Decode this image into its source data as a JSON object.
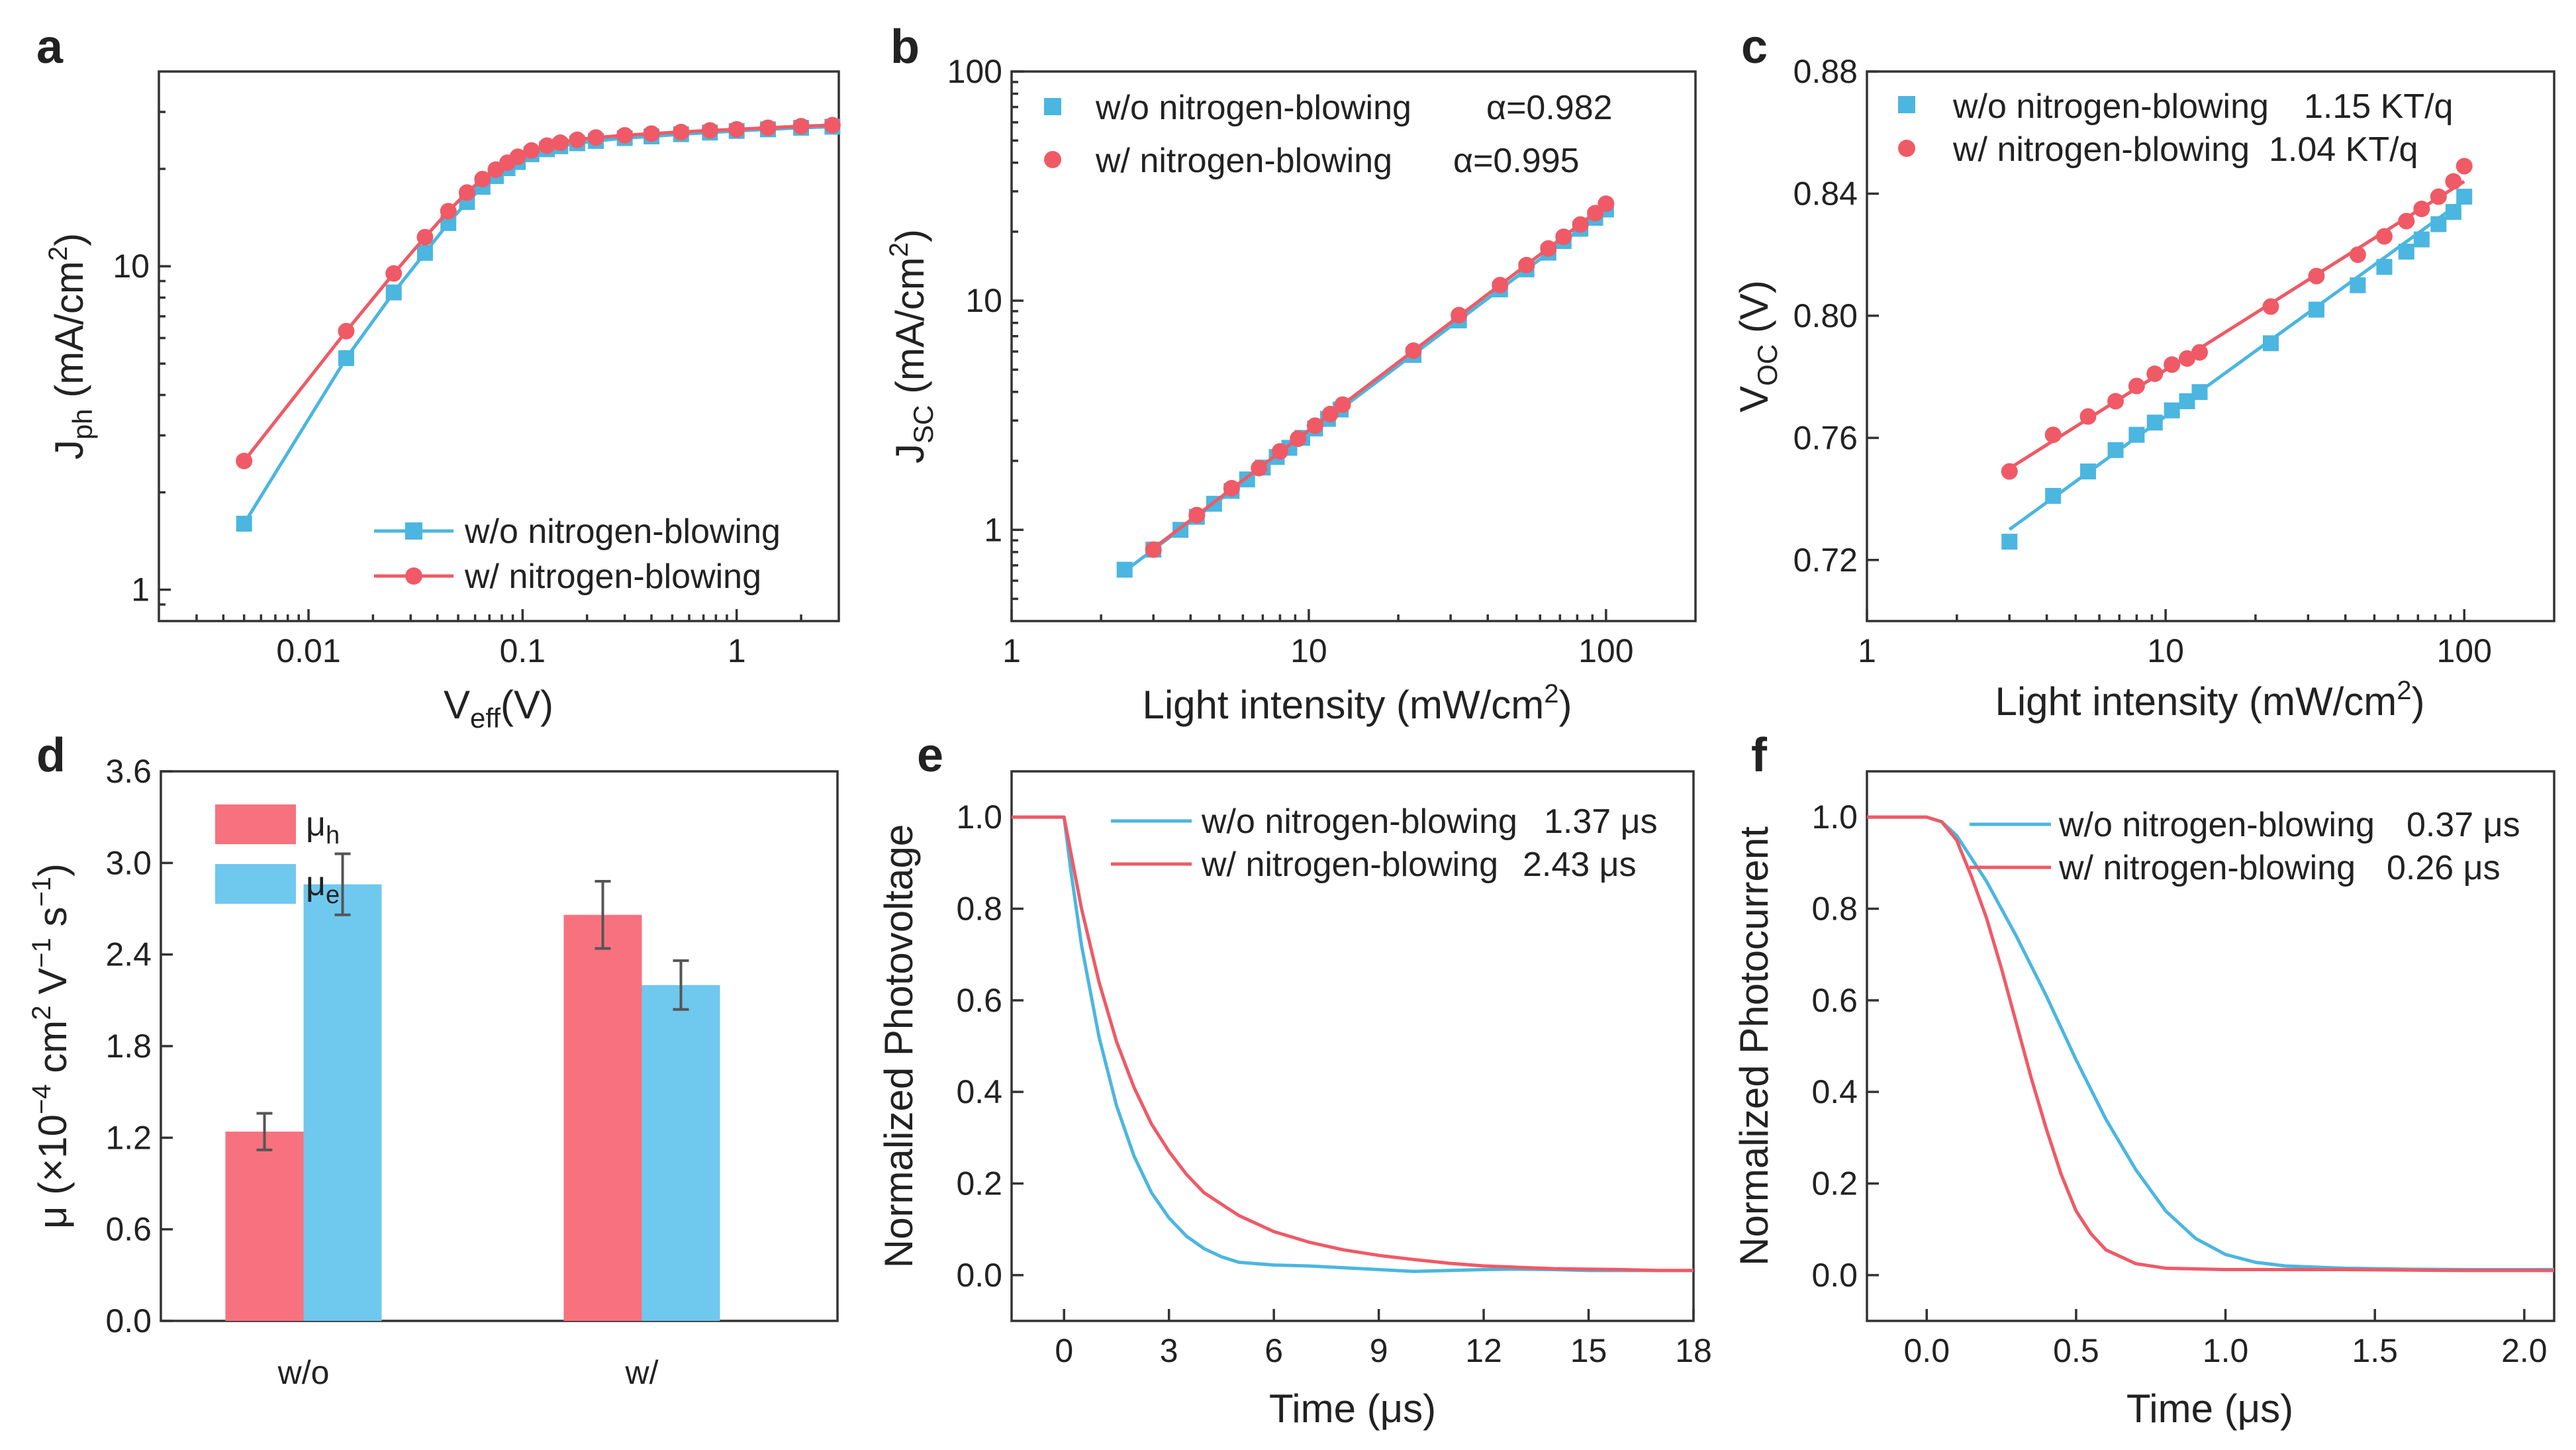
{
  "colors": {
    "blue": "#4BB6E0",
    "red": "#EF5A66",
    "bar_red": "#F7727E",
    "bar_blue": "#6FC8EE",
    "axis": "#333333",
    "err": "#555555"
  },
  "chart_data": [
    {
      "panel": "a",
      "type": "line",
      "xscale": "log",
      "yscale": "log",
      "xlabel_main": "V",
      "xlabel_sub": "eff",
      "xlabel_unit": "(V)",
      "ylabel_main": "J",
      "ylabel_sub": "ph",
      "ylabel_unit": " (mA/cm",
      "ylabel_sup": "2",
      "ylabel_close": ")",
      "xlim": [
        0.002,
        3
      ],
      "ylim": [
        0.8,
        40
      ],
      "xticks": [
        {
          "v": 0.01,
          "label": "0.01"
        },
        {
          "v": 0.1,
          "label": "0.1"
        },
        {
          "v": 1,
          "label": "1"
        }
      ],
      "yticks": [
        {
          "v": 1,
          "label": "1"
        },
        {
          "v": 10,
          "label": "10"
        }
      ],
      "legend_position": "bottom-right",
      "series": [
        {
          "name": "w/o  nitrogen-blowing",
          "color": "blue",
          "marker": "square",
          "x": [
            0.005,
            0.015,
            0.025,
            0.035,
            0.045,
            0.055,
            0.065,
            0.075,
            0.085,
            0.095,
            0.11,
            0.13,
            0.15,
            0.18,
            0.22,
            0.3,
            0.4,
            0.55,
            0.75,
            1.0,
            1.4,
            2.0,
            2.8
          ],
          "y": [
            1.6,
            5.2,
            8.3,
            11.0,
            13.6,
            15.8,
            17.6,
            19.0,
            20.1,
            21.0,
            22.2,
            23.0,
            23.5,
            24.0,
            24.4,
            24.9,
            25.2,
            25.6,
            25.9,
            26.2,
            26.5,
            26.8,
            27.0
          ]
        },
        {
          "name": "w/ nitrogen-blowing",
          "color": "red",
          "marker": "circle",
          "x": [
            0.005,
            0.015,
            0.025,
            0.035,
            0.045,
            0.055,
            0.065,
            0.075,
            0.085,
            0.095,
            0.11,
            0.13,
            0.15,
            0.18,
            0.22,
            0.3,
            0.4,
            0.55,
            0.75,
            1.0,
            1.4,
            2.0,
            2.8
          ],
          "y": [
            2.5,
            6.3,
            9.5,
            12.3,
            14.8,
            16.9,
            18.6,
            19.9,
            20.9,
            21.8,
            22.8,
            23.6,
            24.1,
            24.6,
            25.0,
            25.4,
            25.7,
            26.0,
            26.3,
            26.5,
            26.8,
            27.1,
            27.3
          ]
        }
      ]
    },
    {
      "panel": "b",
      "type": "scatter",
      "xscale": "log",
      "yscale": "log",
      "xlabel": "Light intensity",
      "xlabel_unit": " (mW/cm",
      "xlabel_sup": "2",
      "xlabel_close": ")",
      "ylabel_main": "J",
      "ylabel_sub": "SC",
      "ylabel_unit": " (mA/cm",
      "ylabel_sup": "2",
      "ylabel_close": ")",
      "xlim": [
        1,
        200
      ],
      "ylim": [
        0.4,
        100
      ],
      "xticks": [
        {
          "v": 1,
          "label": "1"
        },
        {
          "v": 10,
          "label": "10"
        },
        {
          "v": 100,
          "label": "100"
        }
      ],
      "yticks": [
        {
          "v": 1,
          "label": "1"
        },
        {
          "v": 10,
          "label": "10"
        },
        {
          "v": 100,
          "label": "100"
        }
      ],
      "legend_position": "top-left",
      "series": [
        {
          "name": "w/o  nitrogen-blowing",
          "annotation": "α=0.982",
          "color": "blue",
          "marker": "square",
          "x": [
            2.4,
            3.0,
            3.7,
            4.2,
            4.8,
            5.5,
            6.2,
            7.0,
            7.8,
            8.6,
            9.5,
            10.5,
            11.6,
            12.8,
            22.5,
            32,
            44,
            54,
            64,
            72,
            82,
            92,
            100
          ],
          "y": [
            0.67,
            0.82,
            1.0,
            1.14,
            1.3,
            1.48,
            1.66,
            1.87,
            2.08,
            2.28,
            2.52,
            2.77,
            3.05,
            3.35,
            5.8,
            8.2,
            11.2,
            13.7,
            16.2,
            18.2,
            20.6,
            23.0,
            25.0
          ]
        },
        {
          "name": "w/ nitrogen-blowing",
          "annotation": "α=0.995",
          "color": "red",
          "marker": "circle",
          "x": [
            3.0,
            4.2,
            5.5,
            6.8,
            8.0,
            9.2,
            10.5,
            11.8,
            13.0,
            22.5,
            32,
            44,
            54,
            64,
            72,
            82,
            92,
            100
          ],
          "y": [
            0.82,
            1.16,
            1.52,
            1.86,
            2.2,
            2.5,
            2.85,
            3.2,
            3.52,
            6.05,
            8.65,
            11.7,
            14.3,
            16.9,
            19.0,
            21.5,
            24.1,
            26.5
          ]
        }
      ]
    },
    {
      "panel": "c",
      "type": "scatter",
      "xscale": "log",
      "yscale": "linear",
      "xlabel": "Light intensity",
      "xlabel_unit": " (mW/cm",
      "xlabel_sup": "2",
      "xlabel_close": ")",
      "ylabel_main": "V",
      "ylabel_sub": "OC",
      "ylabel_unit": " (V)",
      "xlim": [
        1,
        200
      ],
      "ylim": [
        0.7,
        0.88
      ],
      "xticks": [
        {
          "v": 1,
          "label": "1"
        },
        {
          "v": 10,
          "label": "10"
        },
        {
          "v": 100,
          "label": "100"
        }
      ],
      "yticks": [
        {
          "v": 0.72,
          "label": "0.72"
        },
        {
          "v": 0.76,
          "label": "0.76"
        },
        {
          "v": 0.8,
          "label": "0.80"
        },
        {
          "v": 0.84,
          "label": "0.84"
        },
        {
          "v": 0.88,
          "label": "0.88"
        }
      ],
      "legend_position": "top-left",
      "series": [
        {
          "name": "w/o nitrogen-blowing",
          "annotation": "1.15 KT/q",
          "color": "blue",
          "marker": "square",
          "x": [
            3,
            4.2,
            5.5,
            6.8,
            8,
            9.2,
            10.5,
            11.8,
            13,
            22.5,
            32,
            44,
            54,
            64,
            72,
            82,
            92,
            100
          ],
          "y": [
            0.726,
            0.741,
            0.749,
            0.756,
            0.761,
            0.765,
            0.769,
            0.772,
            0.775,
            0.791,
            0.802,
            0.81,
            0.816,
            0.821,
            0.825,
            0.83,
            0.834,
            0.839
          ],
          "fit": {
            "x": [
              3,
              100
            ],
            "y": [
              0.73,
              0.838
            ]
          }
        },
        {
          "name": "w/ nitrogen-blowing",
          "annotation": "1.04 KT/q",
          "color": "red",
          "marker": "circle",
          "x": [
            3,
            4.2,
            5.5,
            6.8,
            8,
            9.2,
            10.5,
            11.8,
            13,
            22.5,
            32,
            44,
            54,
            64,
            72,
            82,
            92,
            100
          ],
          "y": [
            0.749,
            0.761,
            0.767,
            0.772,
            0.777,
            0.781,
            0.784,
            0.786,
            0.788,
            0.803,
            0.813,
            0.82,
            0.826,
            0.831,
            0.835,
            0.839,
            0.844,
            0.849
          ],
          "fit": {
            "x": [
              3,
              100
            ],
            "y": [
              0.75,
              0.844
            ]
          }
        }
      ]
    },
    {
      "panel": "d",
      "type": "bar",
      "categories": [
        "w/o",
        "w/"
      ],
      "ylabel": "μ (×10",
      "ylabel_sup1": "−4",
      "ylabel_mid": " cm",
      "ylabel_sup2": "2",
      "ylabel_mid2": " V",
      "ylabel_sup3": "−1",
      "ylabel_mid3": " s",
      "ylabel_sup4": "−1",
      "ylabel_close": ")",
      "ylim": [
        0,
        3.6
      ],
      "yticks": [
        {
          "v": 0.0,
          "label": "0.0"
        },
        {
          "v": 0.6,
          "label": "0.6"
        },
        {
          "v": 1.2,
          "label": "1.2"
        },
        {
          "v": 1.8,
          "label": "1.8"
        },
        {
          "v": 2.4,
          "label": "2.4"
        },
        {
          "v": 3.0,
          "label": "3.0"
        },
        {
          "v": 3.6,
          "label": "3.6"
        }
      ],
      "legend_position": "top-left",
      "series": [
        {
          "name": "μ",
          "sub": "h",
          "color": "bar_red",
          "values": [
            1.24,
            2.66
          ],
          "errors": [
            0.12,
            0.22
          ]
        },
        {
          "name": "μ",
          "sub": "e",
          "color": "bar_blue",
          "values": [
            2.86,
            2.2
          ],
          "errors": [
            0.2,
            0.16
          ]
        }
      ]
    },
    {
      "panel": "e",
      "type": "line",
      "xlabel": "Time (μs)",
      "ylabel": "Normalized Photovoltage",
      "xlim": [
        -1.5,
        18
      ],
      "ylim": [
        -0.1,
        1.1
      ],
      "xticks": [
        {
          "v": 0,
          "label": "0"
        },
        {
          "v": 3,
          "label": "3"
        },
        {
          "v": 6,
          "label": "6"
        },
        {
          "v": 9,
          "label": "9"
        },
        {
          "v": 12,
          "label": "12"
        },
        {
          "v": 15,
          "label": "15"
        },
        {
          "v": 18,
          "label": "18"
        }
      ],
      "yticks": [
        {
          "v": 0.0,
          "label": "0.0"
        },
        {
          "v": 0.2,
          "label": "0.2"
        },
        {
          "v": 0.4,
          "label": "0.4"
        },
        {
          "v": 0.6,
          "label": "0.6"
        },
        {
          "v": 0.8,
          "label": "0.8"
        },
        {
          "v": 1.0,
          "label": "1.0"
        }
      ],
      "legend_position": "top-right",
      "series": [
        {
          "name": "w/o nitrogen-blowing",
          "annotation": "1.37 μs",
          "color": "blue",
          "x": [
            -1.5,
            0,
            0.2,
            0.5,
            1,
            1.5,
            2,
            2.5,
            3,
            3.5,
            4,
            4.5,
            5,
            6,
            7,
            8,
            9,
            10,
            11,
            12,
            13,
            14,
            15,
            16,
            17,
            18
          ],
          "y": [
            1.0,
            1.0,
            0.88,
            0.72,
            0.52,
            0.37,
            0.26,
            0.18,
            0.125,
            0.085,
            0.058,
            0.04,
            0.028,
            0.022,
            0.02,
            0.016,
            0.012,
            0.008,
            0.01,
            0.012,
            0.013,
            0.012,
            0.01,
            0.01,
            0.01,
            0.01
          ]
        },
        {
          "name": "w/ nitrogen-blowing",
          "annotation": "2.43 μs",
          "color": "red",
          "x": [
            -1.5,
            0,
            0.2,
            0.5,
            1,
            1.5,
            2,
            2.5,
            3,
            3.5,
            4,
            5,
            6,
            7,
            8,
            9,
            10,
            11,
            12,
            13,
            14,
            15,
            16,
            17,
            18
          ],
          "y": [
            1.0,
            1.0,
            0.92,
            0.8,
            0.64,
            0.51,
            0.41,
            0.33,
            0.27,
            0.22,
            0.18,
            0.13,
            0.095,
            0.072,
            0.055,
            0.043,
            0.034,
            0.026,
            0.02,
            0.017,
            0.014,
            0.013,
            0.012,
            0.01,
            0.01
          ]
        }
      ]
    },
    {
      "panel": "f",
      "type": "line",
      "xlabel": "Time (μs)",
      "ylabel": "Normalized Photocurrent",
      "xlim": [
        -0.2,
        2.1
      ],
      "ylim": [
        -0.1,
        1.1
      ],
      "xticks": [
        {
          "v": 0.0,
          "label": "0.0"
        },
        {
          "v": 0.5,
          "label": "0.5"
        },
        {
          "v": 1.0,
          "label": "1.0"
        },
        {
          "v": 1.5,
          "label": "1.5"
        },
        {
          "v": 2.0,
          "label": "2.0"
        }
      ],
      "yticks": [
        {
          "v": 0.0,
          "label": "0.0"
        },
        {
          "v": 0.2,
          "label": "0.2"
        },
        {
          "v": 0.4,
          "label": "0.4"
        },
        {
          "v": 0.6,
          "label": "0.6"
        },
        {
          "v": 0.8,
          "label": "0.8"
        },
        {
          "v": 1.0,
          "label": "1.0"
        }
      ],
      "legend_position": "top-right",
      "series": [
        {
          "name": "w/o nitrogen-blowing",
          "annotation": "0.37 μs",
          "color": "blue",
          "x": [
            -0.2,
            0.0,
            0.05,
            0.1,
            0.15,
            0.2,
            0.3,
            0.4,
            0.5,
            0.6,
            0.7,
            0.8,
            0.9,
            1.0,
            1.1,
            1.2,
            1.4,
            1.6,
            1.8,
            2.1
          ],
          "y": [
            1.0,
            1.0,
            0.99,
            0.96,
            0.91,
            0.86,
            0.74,
            0.61,
            0.47,
            0.34,
            0.23,
            0.14,
            0.08,
            0.045,
            0.028,
            0.02,
            0.015,
            0.013,
            0.012,
            0.012
          ]
        },
        {
          "name": "w/ nitrogen-blowing",
          "annotation": "0.26 μs",
          "color": "red",
          "x": [
            -0.2,
            0.0,
            0.05,
            0.1,
            0.15,
            0.2,
            0.25,
            0.3,
            0.35,
            0.4,
            0.45,
            0.5,
            0.55,
            0.6,
            0.7,
            0.8,
            1.0,
            1.4,
            1.8,
            2.1
          ],
          "y": [
            1.0,
            1.0,
            0.99,
            0.95,
            0.87,
            0.78,
            0.67,
            0.55,
            0.43,
            0.32,
            0.22,
            0.14,
            0.09,
            0.055,
            0.025,
            0.015,
            0.012,
            0.012,
            0.01,
            0.01
          ]
        }
      ]
    }
  ]
}
